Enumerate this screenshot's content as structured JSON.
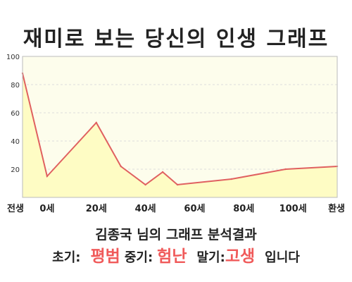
{
  "title": "재미로 보는 당신의 인생 그래프",
  "colors": {
    "line": "#e06060",
    "fill": "#fefcc4",
    "plot_background": "#fdfdec",
    "grid": "#dddddd",
    "highlight": "#f05a5a"
  },
  "chart_data": {
    "type": "area",
    "title": "재미로 보는 당신의 인생 그래프",
    "xlabel": "",
    "ylabel": "",
    "ylim": [
      0,
      100
    ],
    "xlim": [
      -10,
      100
    ],
    "y_ticks": [
      20,
      40,
      60,
      80,
      100
    ],
    "x_ticks": [
      {
        "value": -10,
        "label": "전생"
      },
      {
        "value": 0,
        "label": "0세"
      },
      {
        "value": 20,
        "label": "20세"
      },
      {
        "value": 40,
        "label": "40세"
      },
      {
        "value": 60,
        "label": "60세"
      },
      {
        "value": 80,
        "label": "80세"
      },
      {
        "value": 100,
        "label": "100세"
      },
      {
        "value": 118,
        "label": "환생"
      }
    ],
    "grid": true,
    "series": [
      {
        "x": [
          -10,
          0,
          20,
          30,
          40,
          47,
          53,
          75,
          97,
          118
        ],
        "values": [
          88,
          15,
          53,
          22,
          9,
          18,
          9,
          13,
          20,
          22
        ]
      }
    ]
  },
  "analysis": {
    "title": "김종국 님의 그래프 분석결과",
    "early_label": "초기:",
    "early_value": "평범",
    "middle_label": "중기:",
    "middle_value": "험난",
    "late_label": "말기:",
    "late_value": "고생",
    "suffix": "입니다"
  }
}
